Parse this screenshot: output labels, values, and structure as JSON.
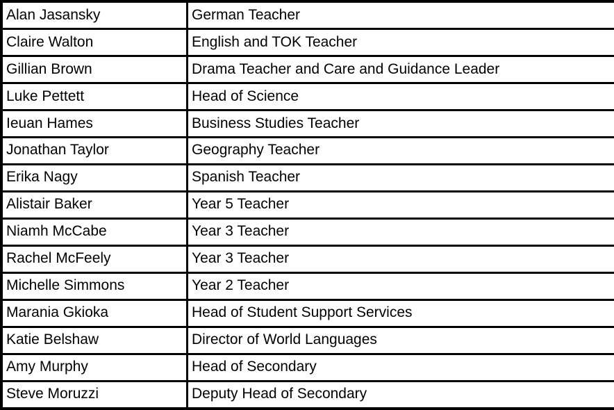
{
  "colors": {
    "border": "#000000",
    "cell_background": "#ffffff",
    "text": "#000000"
  },
  "table": {
    "columns": [
      "name",
      "role"
    ],
    "rows": [
      {
        "name": "Alan Jasansky",
        "role": "German Teacher"
      },
      {
        "name": "Claire Walton",
        "role": "English and TOK Teacher"
      },
      {
        "name": "Gillian Brown",
        "role": "Drama Teacher and Care and Guidance Leader"
      },
      {
        "name": "Luke Pettett",
        "role": "Head of Science"
      },
      {
        "name": "Ieuan Hames",
        "role": "Business Studies Teacher"
      },
      {
        "name": "Jonathan Taylor",
        "role": "Geography Teacher"
      },
      {
        "name": "Erika Nagy",
        "role": "Spanish Teacher"
      },
      {
        "name": "Alistair Baker",
        "role": "Year 5 Teacher"
      },
      {
        "name": "Niamh McCabe",
        "role": "Year 3 Teacher"
      },
      {
        "name": "Rachel McFeely",
        "role": "Year 3 Teacher"
      },
      {
        "name": "Michelle Simmons",
        "role": "Year 2 Teacher"
      },
      {
        "name": "Marania Gkioka",
        "role": "Head of Student Support Services"
      },
      {
        "name": "Katie Belshaw",
        "role": "Director of World Languages"
      },
      {
        "name": "Amy Murphy",
        "role": "Head of Secondary"
      },
      {
        "name": "Steve Moruzzi",
        "role": "Deputy Head of Secondary"
      }
    ]
  }
}
